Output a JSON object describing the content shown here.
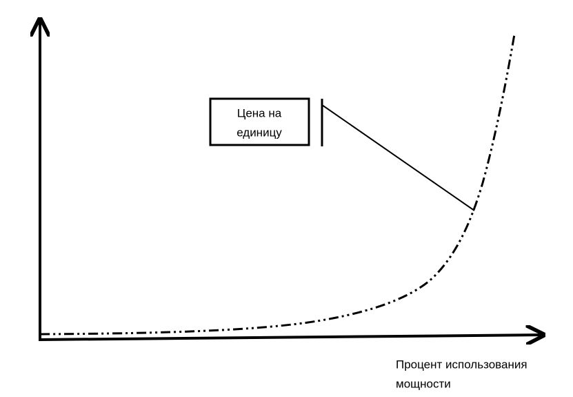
{
  "callout": {
    "lines": [
      "Цена на",
      "единицу"
    ]
  },
  "x_axis_label": {
    "lines": [
      "Процент использования",
      "мощности"
    ]
  }
}
